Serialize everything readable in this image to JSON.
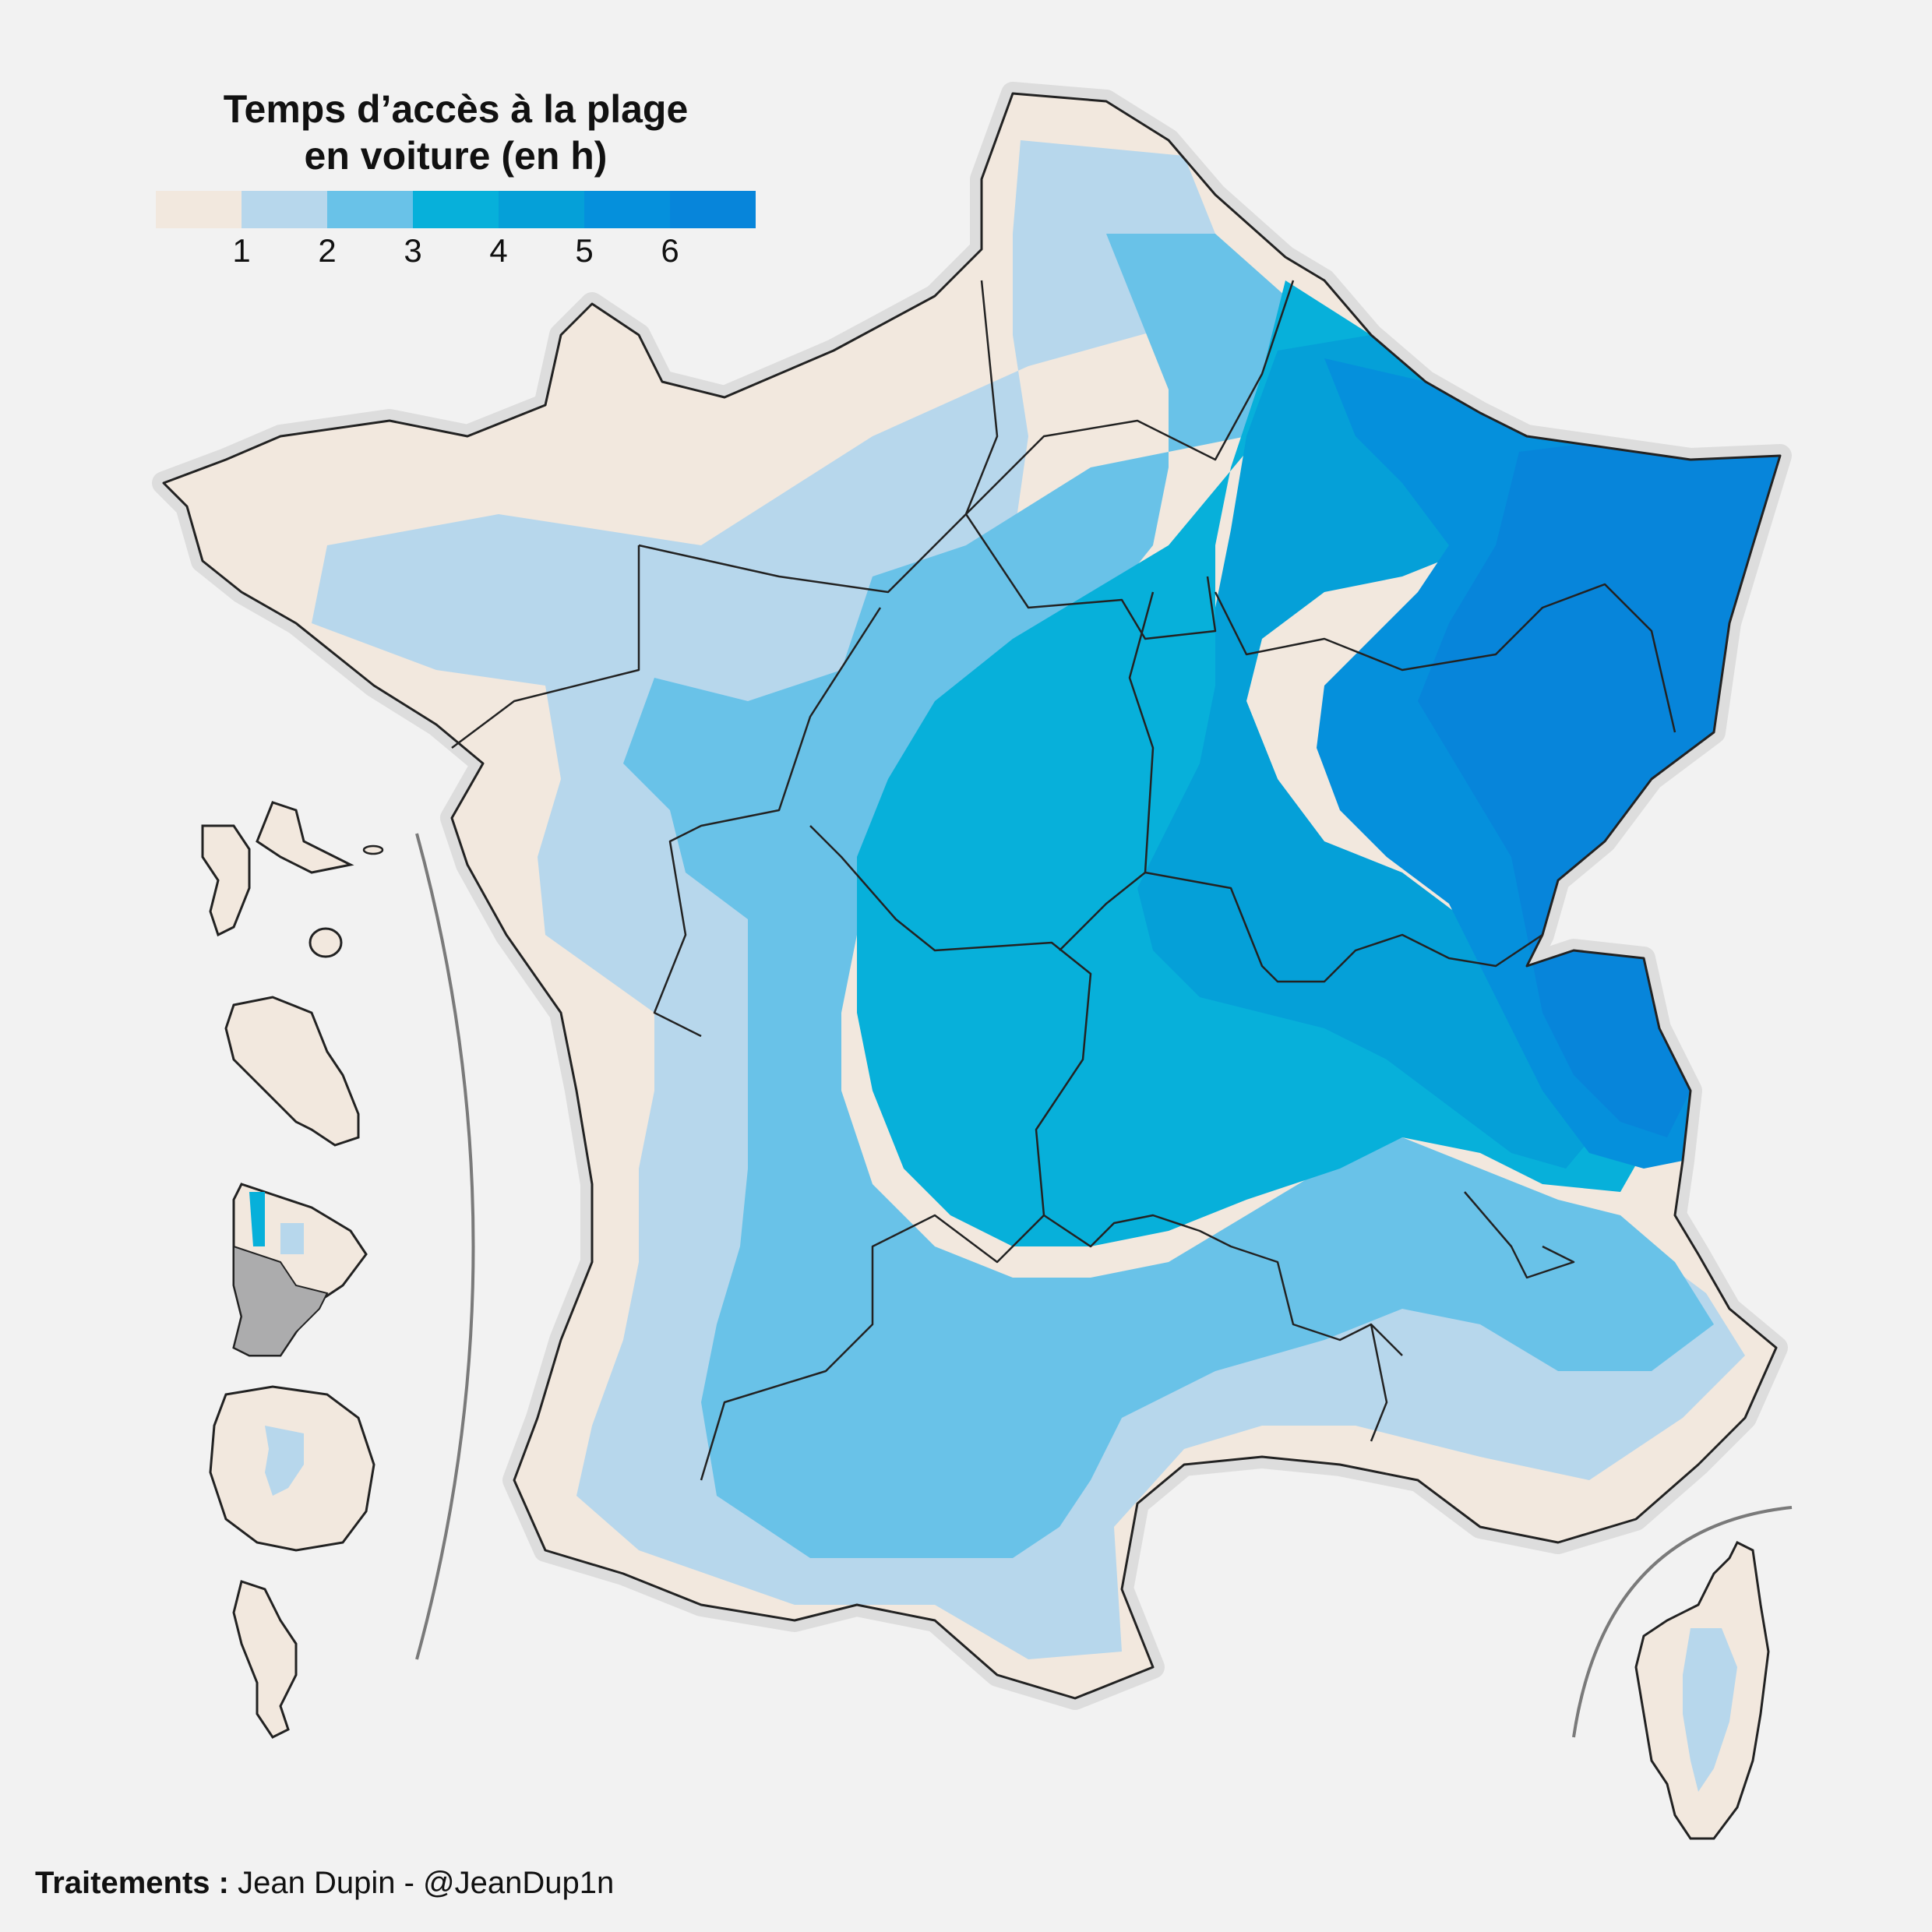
{
  "legend": {
    "title_line1": "Temps d’accès à la plage",
    "title_line2": "en voiture (en h)",
    "ticks": [
      "1",
      "2",
      "3",
      "4",
      "5",
      "6"
    ],
    "colors": [
      "#f2e8de",
      "#b7d7ec",
      "#69c2e8",
      "#07b0da",
      "#05a0d8",
      "#0590dc",
      "#0785da"
    ]
  },
  "credit": {
    "label": "Traitements :",
    "author": "Jean Dupin - @JeanDup1n"
  },
  "map": {
    "coast_color": "#f2e8de",
    "out_of_data_color": "#acacad",
    "border_color": "#222222",
    "separator_color": "#7a7a7a"
  }
}
